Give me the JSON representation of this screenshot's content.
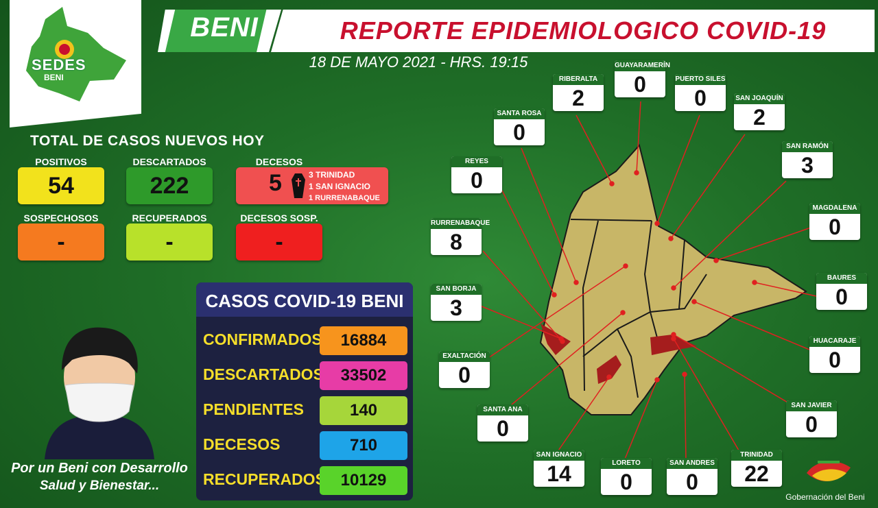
{
  "header": {
    "beni": "BENI",
    "title": "REPORTE EPIDEMIOLOGICO COVID-19",
    "date": "18 DE MAYO 2021  -  HRS. 19:15"
  },
  "logo": {
    "text": "SEDES",
    "sub": "BENI"
  },
  "totals": {
    "title": "TOTAL DE CASOS NUEVOS HOY",
    "positivos_label": "POSITIVOS",
    "positivos": "54",
    "descartados_label": "DESCARTADOS",
    "descartados": "222",
    "decesos_label": "DECESOS",
    "decesos": "5",
    "decesos_detail": [
      "3 TRINIDAD",
      "1 SAN IGNACIO",
      "1 RURRENABAQUE"
    ],
    "sospechosos_label": "SOSPECHOSOS",
    "sospechosos": "-",
    "recuperados_label": "RECUPERADOS",
    "recuperados": "-",
    "decesos_sosp_label": "DECESOS SOSP.",
    "decesos_sosp": "-"
  },
  "colors": {
    "positivos": "#f2e21c",
    "descartados": "#2e9a2a",
    "decesos": "#f05050",
    "sospechosos": "#f57a1f",
    "recuperados": "#b8e12a",
    "decesos_sosp": "#ef1f1f"
  },
  "cases": {
    "title": "CASOS COVID-19 BENI",
    "rows": [
      {
        "label": "CONFIRMADOS",
        "value": "16884",
        "color": "#f7941d"
      },
      {
        "label": "DESCARTADOS",
        "value": "33502",
        "color": "#e73ca6"
      },
      {
        "label": "PENDIENTES",
        "value": "140",
        "color": "#a6d63a"
      },
      {
        "label": "DECESOS",
        "value": "710",
        "color": "#1ea4e8"
      },
      {
        "label": "RECUPERADOS",
        "value": "10129",
        "color": "#59d32a"
      }
    ]
  },
  "slogan": [
    "Por un Beni con Desarrollo",
    "Salud y Bienestar..."
  ],
  "municipalities": {
    "riberalta": {
      "name": "RIBERALTA",
      "value": "2"
    },
    "guayaramerin": {
      "name": "GUAYARAMERÍN",
      "value": "0"
    },
    "puerto_siles": {
      "name": "PUERTO SILES",
      "value": "0"
    },
    "san_joaquin": {
      "name": "SAN JOAQUÍN",
      "value": "2"
    },
    "santa_rosa": {
      "name": "SANTA ROSA",
      "value": "0"
    },
    "san_ramon": {
      "name": "SAN RAMÓN",
      "value": "3"
    },
    "reyes": {
      "name": "REYES",
      "value": "0"
    },
    "magdalena": {
      "name": "MAGDALENA",
      "value": "0"
    },
    "rurrenabaque": {
      "name": "RURRENABAQUE",
      "value": "8"
    },
    "baures": {
      "name": "BAURES",
      "value": "0"
    },
    "san_borja": {
      "name": "SAN BORJA",
      "value": "3"
    },
    "huacaraje": {
      "name": "HUACARAJE",
      "value": "0"
    },
    "exaltacion": {
      "name": "EXALTACIÓN",
      "value": "0"
    },
    "santa_ana": {
      "name": "SANTA ANA",
      "value": "0"
    },
    "san_javier": {
      "name": "SAN JAVIER",
      "value": "0"
    },
    "san_ignacio": {
      "name": "SAN IGNACIO",
      "value": "14"
    },
    "loreto": {
      "name": "LORETO",
      "value": "0"
    },
    "san_andres": {
      "name": "SAN ANDRES",
      "value": "0"
    },
    "trinidad": {
      "name": "TRINIDAD",
      "value": "22"
    }
  },
  "footer": {
    "gobernacion": "Gobernación del Beni"
  }
}
